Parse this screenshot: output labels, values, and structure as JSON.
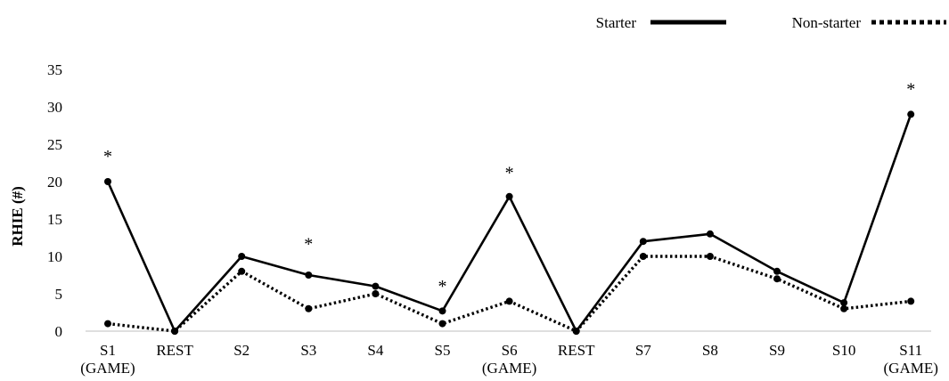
{
  "chart_data": {
    "type": "line",
    "title": "",
    "xlabel": "",
    "ylabel": "RHIE (#)",
    "ylim": [
      0,
      35
    ],
    "yticks": [
      0,
      5,
      10,
      15,
      20,
      25,
      30,
      35
    ],
    "grid": false,
    "legend_position": "top-right",
    "categories": [
      [
        "S1",
        "(GAME)"
      ],
      [
        "REST"
      ],
      [
        "S2"
      ],
      [
        "S3"
      ],
      [
        "S4"
      ],
      [
        "S5"
      ],
      [
        "S6",
        "(GAME)"
      ],
      [
        "REST"
      ],
      [
        "S7"
      ],
      [
        "S8"
      ],
      [
        "S9"
      ],
      [
        "S10"
      ],
      [
        "S11",
        "(GAME)"
      ]
    ],
    "series": [
      {
        "name": "Starter",
        "style": "solid",
        "color": "#000000",
        "values": [
          20,
          0,
          10,
          7.5,
          6,
          2.7,
          18,
          0,
          12,
          13,
          8,
          3.8,
          29
        ]
      },
      {
        "name": "Non-starter",
        "style": "dotted",
        "color": "#000000",
        "values": [
          1,
          0,
          8,
          3,
          5,
          1,
          4,
          0,
          10,
          10,
          7,
          3,
          4
        ]
      }
    ],
    "annotations": [
      {
        "category_index": 0,
        "y": 23.8,
        "text": "*"
      },
      {
        "category_index": 3,
        "y": 12.1,
        "text": "*"
      },
      {
        "category_index": 5,
        "y": 6.4,
        "text": "*"
      },
      {
        "category_index": 6,
        "y": 21.6,
        "text": "*"
      },
      {
        "category_index": 12,
        "y": 32.8,
        "text": "*"
      }
    ]
  }
}
